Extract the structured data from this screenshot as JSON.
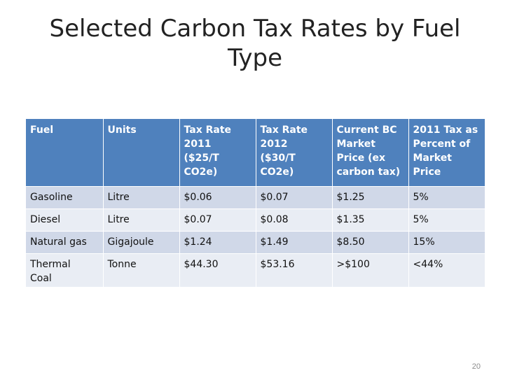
{
  "slide": {
    "title": "Selected Carbon Tax Rates by Fuel\nType",
    "page_number": "20"
  },
  "table": {
    "headers": [
      "Fuel",
      "Units",
      "Tax Rate\n2011\n($25/T\nCO2e)",
      "Tax Rate\n2012\n($30/T\nCO2e)",
      "Current BC\nMarket\nPrice (ex\ncarbon tax)",
      "2011 Tax as\nPercent of\nMarket\nPrice"
    ],
    "rows": [
      [
        "Gasoline",
        "Litre",
        "$0.06",
        "$0.07",
        "$1.25",
        "5%"
      ],
      [
        "Diesel",
        "Litre",
        "$0.07",
        "$0.08",
        "$1.35",
        "5%"
      ],
      [
        "Natural gas",
        "Gigajoule",
        "$1.24",
        "$1.49",
        "$8.50",
        "15%"
      ],
      [
        "Thermal\nCoal",
        "Tonne",
        "$44.30",
        "$53.16",
        ">$100",
        "<44%"
      ]
    ]
  },
  "colors": {
    "header_bg": "#4f81bd",
    "row_odd_bg": "#d0d8e8",
    "row_even_bg": "#e9edf4"
  }
}
